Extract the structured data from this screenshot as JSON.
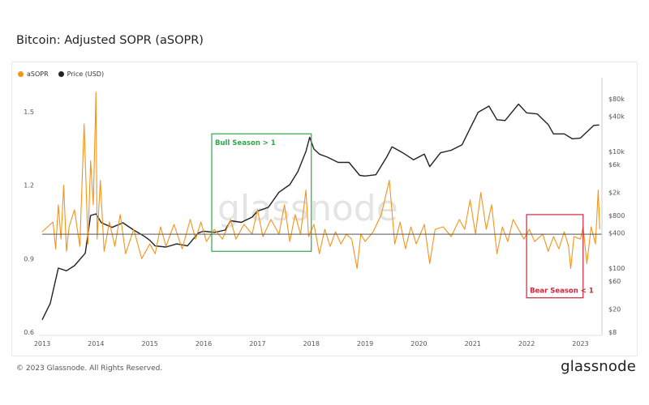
{
  "page": {
    "title": "Bitcoin: Adjusted SOPR (aSOPR)",
    "copyright": "© 2023 Glassnode. All Rights Reserved.",
    "brand": "glassnode",
    "watermark": "glassnode"
  },
  "legend": [
    {
      "name": "aSOPR",
      "color": "#f7931a"
    },
    {
      "name": "Price (USD)",
      "color": "#222222"
    }
  ],
  "chart_data": {
    "type": "line",
    "x_ticks": [
      "2013",
      "2014",
      "2015",
      "2016",
      "2017",
      "2018",
      "2019",
      "2020",
      "2021",
      "2022",
      "2023"
    ],
    "y_left": {
      "ticks": [
        "1.5",
        "1.2",
        "0.9",
        "0.6"
      ],
      "range": [
        0.6,
        1.6
      ]
    },
    "y_right": {
      "ticks": [
        "$80k",
        "$40k",
        "$10k",
        "$6k",
        "$2k",
        "$800",
        "$400",
        "$100",
        "$60",
        "$20",
        "$8"
      ],
      "scale": "log"
    },
    "baseline": 1.0,
    "series": [
      {
        "name": "Price (USD)",
        "axis": "right",
        "color": "#222222",
        "points": [
          [
            2013.0,
            13
          ],
          [
            2013.15,
            25
          ],
          [
            2013.3,
            100
          ],
          [
            2013.45,
            90
          ],
          [
            2013.6,
            110
          ],
          [
            2013.8,
            180
          ],
          [
            2013.9,
            800
          ],
          [
            2014.0,
            850
          ],
          [
            2014.1,
            600
          ],
          [
            2014.3,
            500
          ],
          [
            2014.5,
            600
          ],
          [
            2014.7,
            450
          ],
          [
            2014.9,
            350
          ],
          [
            2015.0,
            300
          ],
          [
            2015.1,
            240
          ],
          [
            2015.3,
            230
          ],
          [
            2015.5,
            260
          ],
          [
            2015.7,
            240
          ],
          [
            2015.9,
            400
          ],
          [
            2016.0,
            430
          ],
          [
            2016.2,
            410
          ],
          [
            2016.4,
            450
          ],
          [
            2016.5,
            650
          ],
          [
            2016.7,
            610
          ],
          [
            2016.9,
            750
          ],
          [
            2017.0,
            950
          ],
          [
            2017.2,
            1100
          ],
          [
            2017.4,
            2000
          ],
          [
            2017.6,
            2700
          ],
          [
            2017.75,
            4500
          ],
          [
            2017.9,
            10000
          ],
          [
            2017.97,
            17500
          ],
          [
            2018.05,
            11000
          ],
          [
            2018.15,
            9000
          ],
          [
            2018.3,
            8000
          ],
          [
            2018.5,
            6500
          ],
          [
            2018.7,
            6500
          ],
          [
            2018.9,
            3900
          ],
          [
            2019.0,
            3800
          ],
          [
            2019.2,
            4000
          ],
          [
            2019.4,
            8000
          ],
          [
            2019.5,
            12000
          ],
          [
            2019.7,
            9500
          ],
          [
            2019.9,
            7200
          ],
          [
            2020.1,
            9000
          ],
          [
            2020.2,
            5500
          ],
          [
            2020.4,
            9500
          ],
          [
            2020.6,
            10500
          ],
          [
            2020.8,
            13000
          ],
          [
            2020.95,
            25000
          ],
          [
            2021.1,
            47000
          ],
          [
            2021.3,
            60000
          ],
          [
            2021.45,
            35000
          ],
          [
            2021.6,
            34000
          ],
          [
            2021.75,
            50000
          ],
          [
            2021.85,
            65000
          ],
          [
            2022.0,
            46000
          ],
          [
            2022.2,
            44000
          ],
          [
            2022.4,
            29000
          ],
          [
            2022.5,
            20000
          ],
          [
            2022.7,
            20000
          ],
          [
            2022.85,
            16500
          ],
          [
            2023.0,
            17000
          ],
          [
            2023.15,
            23000
          ],
          [
            2023.25,
            28000
          ],
          [
            2023.35,
            28500
          ]
        ]
      },
      {
        "name": "aSOPR",
        "axis": "left",
        "color": "#f7931a",
        "points": [
          [
            2013.0,
            1.01
          ],
          [
            2013.2,
            1.05
          ],
          [
            2013.25,
            0.94
          ],
          [
            2013.3,
            1.12
          ],
          [
            2013.35,
            0.98
          ],
          [
            2013.4,
            1.2
          ],
          [
            2013.45,
            0.93
          ],
          [
            2013.5,
            1.03
          ],
          [
            2013.6,
            1.1
          ],
          [
            2013.7,
            0.95
          ],
          [
            2013.78,
            1.45
          ],
          [
            2013.85,
            0.96
          ],
          [
            2013.9,
            1.3
          ],
          [
            2013.95,
            1.12
          ],
          [
            2014.0,
            1.58
          ],
          [
            2014.02,
            0.98
          ],
          [
            2014.08,
            1.22
          ],
          [
            2014.15,
            0.93
          ],
          [
            2014.25,
            1.05
          ],
          [
            2014.35,
            0.95
          ],
          [
            2014.45,
            1.08
          ],
          [
            2014.55,
            0.92
          ],
          [
            2014.7,
            1.02
          ],
          [
            2014.85,
            0.9
          ],
          [
            2015.0,
            0.96
          ],
          [
            2015.1,
            0.92
          ],
          [
            2015.2,
            1.03
          ],
          [
            2015.3,
            0.95
          ],
          [
            2015.45,
            1.04
          ],
          [
            2015.6,
            0.94
          ],
          [
            2015.75,
            1.06
          ],
          [
            2015.85,
            0.98
          ],
          [
            2015.95,
            1.05
          ],
          [
            2016.05,
            0.97
          ],
          [
            2016.2,
            1.02
          ],
          [
            2016.35,
            0.98
          ],
          [
            2016.5,
            1.06
          ],
          [
            2016.6,
            0.98
          ],
          [
            2016.75,
            1.04
          ],
          [
            2016.9,
            1.0
          ],
          [
            2017.0,
            1.1
          ],
          [
            2017.1,
            0.99
          ],
          [
            2017.25,
            1.06
          ],
          [
            2017.4,
            1.0
          ],
          [
            2017.5,
            1.12
          ],
          [
            2017.6,
            0.97
          ],
          [
            2017.7,
            1.08
          ],
          [
            2017.8,
            1.0
          ],
          [
            2017.9,
            1.18
          ],
          [
            2017.95,
            0.99
          ],
          [
            2018.05,
            1.04
          ],
          [
            2018.15,
            0.92
          ],
          [
            2018.25,
            1.02
          ],
          [
            2018.35,
            0.95
          ],
          [
            2018.45,
            1.01
          ],
          [
            2018.55,
            0.96
          ],
          [
            2018.65,
            1.0
          ],
          [
            2018.75,
            0.98
          ],
          [
            2018.85,
            0.86
          ],
          [
            2018.92,
            1.0
          ],
          [
            2019.0,
            0.97
          ],
          [
            2019.15,
            1.01
          ],
          [
            2019.3,
            1.08
          ],
          [
            2019.45,
            1.22
          ],
          [
            2019.55,
            0.96
          ],
          [
            2019.65,
            1.05
          ],
          [
            2019.75,
            0.94
          ],
          [
            2019.85,
            1.03
          ],
          [
            2019.95,
            0.96
          ],
          [
            2020.1,
            1.04
          ],
          [
            2020.2,
            0.88
          ],
          [
            2020.3,
            1.02
          ],
          [
            2020.45,
            1.03
          ],
          [
            2020.6,
            0.99
          ],
          [
            2020.75,
            1.06
          ],
          [
            2020.85,
            1.02
          ],
          [
            2020.95,
            1.14
          ],
          [
            2021.05,
            1.0
          ],
          [
            2021.15,
            1.17
          ],
          [
            2021.25,
            1.02
          ],
          [
            2021.35,
            1.12
          ],
          [
            2021.45,
            0.92
          ],
          [
            2021.55,
            1.03
          ],
          [
            2021.65,
            0.97
          ],
          [
            2021.75,
            1.06
          ],
          [
            2021.85,
            1.02
          ],
          [
            2021.95,
            0.98
          ],
          [
            2022.05,
            1.02
          ],
          [
            2022.15,
            0.97
          ],
          [
            2022.3,
            1.0
          ],
          [
            2022.4,
            0.93
          ],
          [
            2022.5,
            0.99
          ],
          [
            2022.6,
            0.94
          ],
          [
            2022.7,
            1.01
          ],
          [
            2022.78,
            0.95
          ],
          [
            2022.82,
            0.86
          ],
          [
            2022.88,
            0.99
          ],
          [
            2023.0,
            0.98
          ],
          [
            2023.05,
            1.03
          ],
          [
            2023.12,
            0.88
          ],
          [
            2023.2,
            1.03
          ],
          [
            2023.28,
            0.96
          ],
          [
            2023.33,
            1.18
          ],
          [
            2023.36,
            1.02
          ]
        ]
      }
    ],
    "annotations": [
      {
        "label": "Bull Season > 1",
        "color": "#2da84a",
        "x": [
          2016.15,
          2018.0
        ],
        "y": [
          0.93,
          1.41
        ],
        "label_pos": "top-left"
      },
      {
        "label": "Bear Season < 1",
        "color": "#d6223b",
        "x": [
          2022.0,
          2023.05
        ],
        "y": [
          0.74,
          1.08
        ],
        "label_pos": "bottom-left"
      }
    ]
  }
}
